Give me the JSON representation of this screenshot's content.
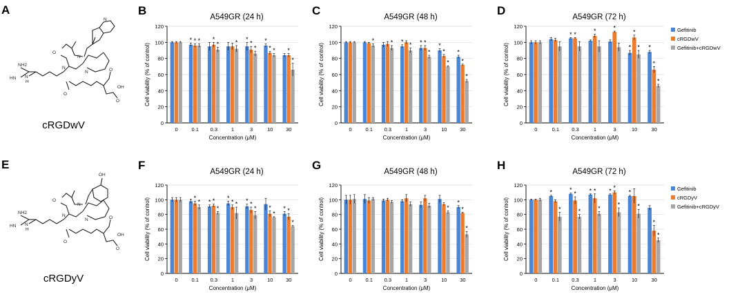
{
  "figure": {
    "panel_letters": [
      "A",
      "B",
      "C",
      "D",
      "E",
      "F",
      "G",
      "H"
    ],
    "molecules": [
      {
        "letter": "A",
        "name": "cRGDwV",
        "side_chain": "indole",
        "labels": {
          "guanidine_nh2": "NH2",
          "guanidine_hn": "HN",
          "nh": "N",
          "h": "H",
          "acid": "OH",
          "o": "O",
          "methyl": ""
        }
      },
      {
        "letter": "E",
        "name": "cRGDyV",
        "side_chain": "phenol",
        "labels": {
          "guanidine_nh2": "NH2",
          "guanidine_hn": "HN",
          "nh": "N",
          "h": "H",
          "acid": "OH",
          "o": "O",
          "phenol": "OH"
        }
      }
    ],
    "colors": {
      "gefitinib": "#4a86d4",
      "peptide": "#ec7c30",
      "combo": "#a6a6a6",
      "axis": "#000000",
      "grid": "#d9d9d9"
    },
    "star": "*"
  },
  "chart_data": [
    {
      "letter": "B",
      "type": "bar",
      "title": "A549GR (24 h)",
      "xlabel": "Concentration (μM)",
      "ylabel": "Cell viability (% of control)",
      "ylim": [
        0,
        120
      ],
      "yticks": [
        "0",
        "20",
        "40",
        "60",
        "80",
        "100",
        "120"
      ],
      "categories": [
        "0",
        "0.1",
        "0.3",
        "1",
        "3",
        "10",
        "30"
      ],
      "legend": null,
      "series": [
        {
          "name": "Gefitinib",
          "values": [
            100,
            97,
            95,
            95,
            95,
            96,
            84
          ],
          "errors": [
            1,
            2,
            5,
            5,
            5,
            2,
            2
          ],
          "sig": [
            false,
            true,
            false,
            false,
            true,
            true,
            false
          ]
        },
        {
          "name": "cRGDwV",
          "values": [
            100,
            96,
            97,
            95,
            91,
            87,
            84
          ],
          "errors": [
            1,
            2,
            3,
            4,
            4,
            2,
            2
          ],
          "sig": [
            false,
            true,
            true,
            false,
            true,
            true,
            true
          ]
        },
        {
          "name": "Gefitinib+cRGDwV",
          "values": [
            100,
            96,
            91,
            92,
            86,
            84,
            66
          ],
          "errors": [
            1,
            2,
            3,
            4,
            3,
            2,
            8
          ],
          "sig": [
            false,
            true,
            true,
            true,
            true,
            true,
            true
          ]
        }
      ]
    },
    {
      "letter": "C",
      "type": "bar",
      "title": "A549GR (48 h)",
      "xlabel": "Concentration (μM)",
      "ylabel": "Cell viability (% of control)",
      "ylim": [
        0,
        120
      ],
      "yticks": [
        "0",
        "20",
        "40",
        "60",
        "80",
        "100",
        "120"
      ],
      "categories": [
        "0",
        "0.1",
        "0.3",
        "1",
        "3",
        "10",
        "30"
      ],
      "legend": null,
      "series": [
        {
          "name": "Gefitinib",
          "values": [
            100,
            100,
            97,
            95,
            93,
            90,
            82
          ],
          "errors": [
            1,
            1,
            3,
            2,
            3,
            2,
            2
          ],
          "sig": [
            false,
            false,
            false,
            true,
            true,
            true,
            true
          ]
        },
        {
          "name": "cRGDwV",
          "values": [
            100,
            99,
            98,
            100,
            93,
            83,
            72
          ],
          "errors": [
            1,
            1,
            3,
            2,
            3,
            2,
            1
          ],
          "sig": [
            false,
            false,
            false,
            false,
            true,
            true,
            true
          ]
        },
        {
          "name": "Gefitinib+cRGDwV",
          "values": [
            100,
            96,
            93,
            90,
            82,
            70,
            52
          ],
          "errors": [
            1,
            2,
            3,
            3,
            2,
            1,
            2
          ],
          "sig": [
            false,
            true,
            true,
            true,
            true,
            true,
            true
          ]
        }
      ]
    },
    {
      "letter": "D",
      "type": "bar",
      "title": "A549GR (72 h)",
      "xlabel": "Concentration (μM)",
      "ylabel": "Cell viability (% of control)",
      "ylim": [
        0,
        120
      ],
      "yticks": [
        "0",
        "20",
        "40",
        "60",
        "80",
        "100",
        "120"
      ],
      "categories": [
        "0",
        "0.1",
        "0.3",
        "1",
        "3",
        "10",
        "30"
      ],
      "legend": "top-right",
      "series": [
        {
          "name": "Gefitinib",
          "values": [
            100,
            104,
            105,
            102,
            101,
            87,
            88
          ],
          "errors": [
            2,
            2,
            1,
            1,
            2,
            3,
            2
          ],
          "sig": [
            false,
            false,
            true,
            false,
            false,
            true,
            true
          ]
        },
        {
          "name": "cRGDwV",
          "values": [
            100,
            103,
            105,
            108,
            113,
            106,
            66
          ],
          "errors": [
            2,
            2,
            1,
            2,
            1,
            3,
            4
          ],
          "sig": [
            false,
            false,
            true,
            true,
            true,
            true,
            true
          ]
        },
        {
          "name": "Gefitinib+cRGDwV",
          "values": [
            100,
            95,
            95,
            95,
            94,
            85,
            46
          ],
          "errors": [
            2,
            6,
            6,
            7,
            5,
            5,
            2
          ],
          "sig": [
            false,
            false,
            false,
            false,
            false,
            true,
            true
          ]
        }
      ]
    },
    {
      "letter": "F",
      "type": "bar",
      "title": "A549GR (24 h)",
      "xlabel": "Concentration (μM)",
      "ylabel": "Cell viability (% of control)",
      "ylim": [
        0,
        120
      ],
      "yticks": [
        "0",
        "20",
        "40",
        "60",
        "80",
        "100",
        "120"
      ],
      "categories": [
        "0",
        "0.1",
        "0.3",
        "1",
        "3",
        "10",
        "30"
      ],
      "legend": null,
      "series": [
        {
          "name": "Gefitinib",
          "values": [
            100,
            98,
            91,
            95,
            91,
            94,
            81
          ],
          "errors": [
            3,
            3,
            2,
            3,
            3,
            8,
            3
          ],
          "sig": [
            false,
            false,
            true,
            true,
            true,
            false,
            true
          ]
        },
        {
          "name": "cRGDyV",
          "values": [
            100,
            95,
            92,
            90,
            86,
            81,
            77
          ],
          "errors": [
            3,
            3,
            2,
            3,
            4,
            4,
            4
          ],
          "sig": [
            false,
            true,
            true,
            true,
            true,
            true,
            true
          ]
        },
        {
          "name": "Gefitinib+cRGDyV",
          "values": [
            100,
            90,
            82,
            82,
            79,
            76,
            64
          ],
          "errors": [
            3,
            3,
            2,
            8,
            5,
            1,
            1
          ],
          "sig": [
            false,
            true,
            true,
            true,
            true,
            true,
            true
          ]
        }
      ]
    },
    {
      "letter": "G",
      "type": "bar",
      "title": "A549GR (48 h)",
      "xlabel": "Concentration (μM)",
      "ylabel": "Cell viability (% of control)",
      "ylim": [
        0,
        120
      ],
      "yticks": [
        "0",
        "20",
        "40",
        "60",
        "80",
        "100",
        "120"
      ],
      "categories": [
        "0",
        "0.1",
        "0.3",
        "1",
        "3",
        "10",
        "30"
      ],
      "legend": null,
      "series": [
        {
          "name": "Gefitinib",
          "values": [
            100,
            101,
            99,
            98,
            93,
            101,
            90
          ],
          "errors": [
            6,
            6,
            2,
            2,
            4,
            5,
            2
          ],
          "sig": [
            false,
            false,
            false,
            false,
            false,
            false,
            true
          ]
        },
        {
          "name": "cRGDyV",
          "values": [
            100,
            99,
            100,
            102,
            102,
            94,
            82
          ],
          "errors": [
            6,
            4,
            2,
            5,
            4,
            2,
            1
          ],
          "sig": [
            false,
            false,
            false,
            false,
            false,
            false,
            true
          ]
        },
        {
          "name": "Gefitinib+cRGDyV",
          "values": [
            101,
            101,
            97,
            94,
            92,
            83,
            53
          ],
          "errors": [
            6,
            2,
            2,
            3,
            3,
            2,
            4
          ],
          "sig": [
            false,
            false,
            false,
            false,
            false,
            true,
            true
          ]
        }
      ]
    },
    {
      "letter": "H",
      "type": "bar",
      "title": "A549GR (72 h)",
      "xlabel": "Concentration (μM)",
      "ylabel": "Cell viability (% of control)",
      "ylim": [
        0,
        120
      ],
      "yticks": [
        "0",
        "20",
        "40",
        "60",
        "80",
        "100",
        "120"
      ],
      "categories": [
        "0",
        "0.1",
        "0.3",
        "1",
        "3",
        "10",
        "30"
      ],
      "legend": "top-right",
      "series": [
        {
          "name": "Gefitinib",
          "values": [
            100,
            105,
            108,
            107,
            107,
            105,
            89
          ],
          "errors": [
            1,
            1,
            1,
            1,
            1,
            1,
            3
          ],
          "sig": [
            false,
            true,
            true,
            true,
            true,
            true,
            false
          ]
        },
        {
          "name": "cRGDyV",
          "values": [
            100,
            98,
            99,
            102,
            110,
            105,
            58
          ],
          "errors": [
            1,
            2,
            5,
            6,
            2,
            10,
            7
          ],
          "sig": [
            false,
            false,
            true,
            true,
            true,
            false,
            true
          ]
        },
        {
          "name": "Gefitinib+cRGDyV",
          "values": [
            100,
            77,
            77,
            81,
            83,
            81,
            45
          ],
          "errors": [
            2,
            6,
            3,
            3,
            6,
            6,
            3
          ],
          "sig": [
            false,
            true,
            true,
            true,
            true,
            true,
            true
          ]
        }
      ]
    }
  ]
}
